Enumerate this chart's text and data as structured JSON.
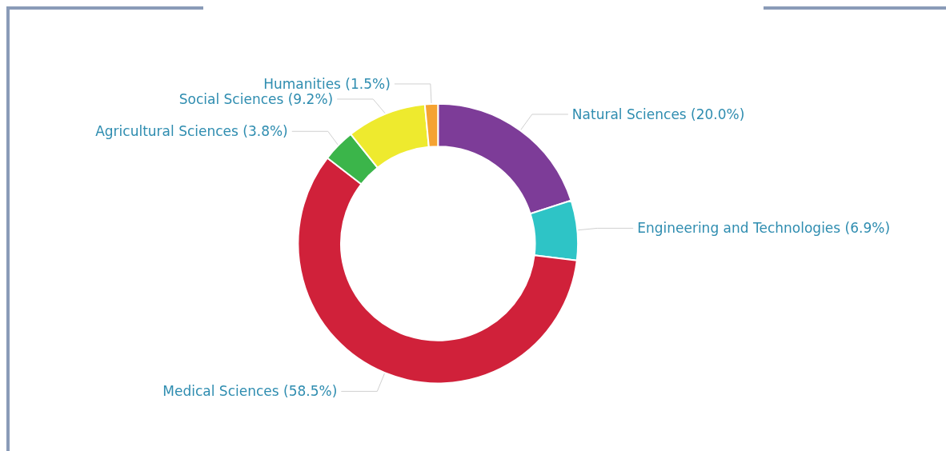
{
  "chart_data": {
    "type": "donut",
    "categories": [
      "Natural Sciences",
      "Engineering and Technologies",
      "Medical Sciences",
      "Agricultural Sciences",
      "Social Sciences",
      "Humanities"
    ],
    "values": [
      20.0,
      6.9,
      58.5,
      3.8,
      9.2,
      1.5
    ],
    "value_labels": [
      "(20.0%)",
      "(6.9%)",
      "(58.5%)",
      "(3.8%)",
      "(9.2%)",
      "(1.5%)"
    ],
    "colors": [
      "#7d3c98",
      "#2ec4c6",
      "#d0213a",
      "#3bb54a",
      "#eeea2e",
      "#f5a332"
    ],
    "legend": false
  }
}
